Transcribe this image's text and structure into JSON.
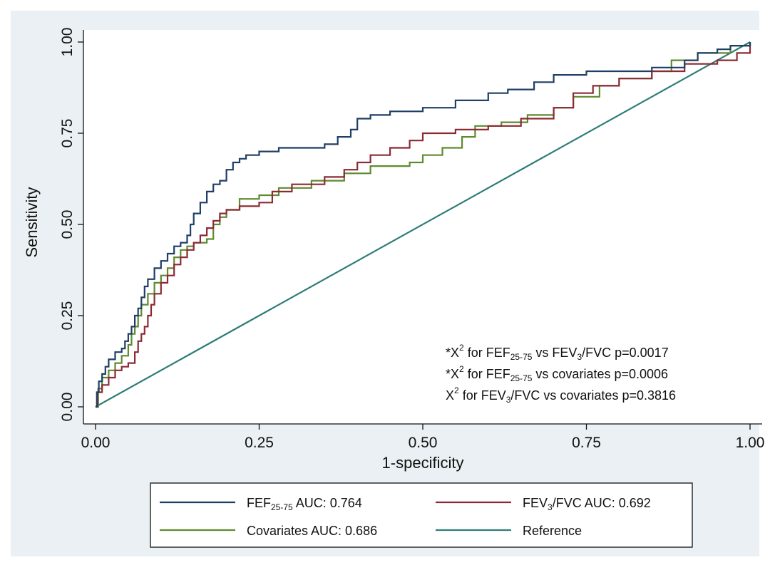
{
  "chart_data": {
    "type": "line",
    "title": "",
    "xlabel": "1-specificity",
    "ylabel": "Sensitivity",
    "xlim": [
      0,
      1
    ],
    "ylim": [
      0,
      1
    ],
    "xticks": [
      "0.00",
      "0.25",
      "0.50",
      "0.75",
      "1.00"
    ],
    "yticks": [
      "0.00",
      "0.25",
      "0.50",
      "0.75",
      "1.00"
    ],
    "grid": false,
    "legend_position": "bottom",
    "annotations": [
      {
        "prefix": "*X",
        "sup": "2",
        "text": " for FEF",
        "sub": "25-75",
        "text2": " vs FEV",
        "sub2": "3",
        "text3": "/FVC p=0.0017"
      },
      {
        "prefix": "*X",
        "sup": "2",
        "text": " for FEF",
        "sub": "25-75",
        "text2": " vs covariates p=0.0006",
        "sub2": "",
        "text3": ""
      },
      {
        "prefix": " X",
        "sup": "2",
        "text": " for FEV",
        "sub": "3",
        "text2": "/FVC vs covariates p=0.3816",
        "sub2": "",
        "text3": ""
      }
    ],
    "series": [
      {
        "legend_main": "FEF",
        "legend_sub": "25-75",
        "legend_rest": " AUC: 0.764",
        "color": "#1f3f66",
        "points": [
          [
            0,
            0
          ],
          [
            0.002,
            0.04
          ],
          [
            0.005,
            0.07
          ],
          [
            0.01,
            0.09
          ],
          [
            0.015,
            0.11
          ],
          [
            0.02,
            0.13
          ],
          [
            0.03,
            0.15
          ],
          [
            0.04,
            0.16
          ],
          [
            0.045,
            0.18
          ],
          [
            0.05,
            0.2
          ],
          [
            0.055,
            0.22
          ],
          [
            0.06,
            0.25
          ],
          [
            0.065,
            0.27
          ],
          [
            0.07,
            0.3
          ],
          [
            0.075,
            0.33
          ],
          [
            0.08,
            0.35
          ],
          [
            0.09,
            0.38
          ],
          [
            0.1,
            0.4
          ],
          [
            0.11,
            0.42
          ],
          [
            0.12,
            0.44
          ],
          [
            0.13,
            0.45
          ],
          [
            0.14,
            0.47
          ],
          [
            0.145,
            0.5
          ],
          [
            0.15,
            0.53
          ],
          [
            0.16,
            0.56
          ],
          [
            0.17,
            0.59
          ],
          [
            0.18,
            0.61
          ],
          [
            0.19,
            0.62
          ],
          [
            0.2,
            0.65
          ],
          [
            0.21,
            0.67
          ],
          [
            0.22,
            0.68
          ],
          [
            0.23,
            0.69
          ],
          [
            0.25,
            0.7
          ],
          [
            0.28,
            0.71
          ],
          [
            0.35,
            0.72
          ],
          [
            0.37,
            0.74
          ],
          [
            0.39,
            0.76
          ],
          [
            0.4,
            0.79
          ],
          [
            0.42,
            0.8
          ],
          [
            0.45,
            0.81
          ],
          [
            0.5,
            0.82
          ],
          [
            0.55,
            0.84
          ],
          [
            0.6,
            0.86
          ],
          [
            0.63,
            0.87
          ],
          [
            0.67,
            0.89
          ],
          [
            0.7,
            0.91
          ],
          [
            0.75,
            0.92
          ],
          [
            0.85,
            0.93
          ],
          [
            0.9,
            0.95
          ],
          [
            0.92,
            0.97
          ],
          [
            0.95,
            0.98
          ],
          [
            0.97,
            0.99
          ],
          [
            1,
            1
          ]
        ]
      },
      {
        "legend_main": "FEV",
        "legend_sub": "3",
        "legend_rest": "/FVC AUC: 0.692",
        "color": "#8c2a35",
        "points": [
          [
            0,
            0
          ],
          [
            0.003,
            0.04
          ],
          [
            0.01,
            0.06
          ],
          [
            0.02,
            0.08
          ],
          [
            0.03,
            0.1
          ],
          [
            0.04,
            0.11
          ],
          [
            0.05,
            0.12
          ],
          [
            0.06,
            0.15
          ],
          [
            0.065,
            0.18
          ],
          [
            0.07,
            0.2
          ],
          [
            0.075,
            0.22
          ],
          [
            0.08,
            0.25
          ],
          [
            0.085,
            0.28
          ],
          [
            0.09,
            0.31
          ],
          [
            0.1,
            0.34
          ],
          [
            0.11,
            0.36
          ],
          [
            0.12,
            0.39
          ],
          [
            0.13,
            0.41
          ],
          [
            0.14,
            0.43
          ],
          [
            0.15,
            0.45
          ],
          [
            0.16,
            0.47
          ],
          [
            0.17,
            0.49
          ],
          [
            0.18,
            0.51
          ],
          [
            0.19,
            0.53
          ],
          [
            0.2,
            0.54
          ],
          [
            0.22,
            0.55
          ],
          [
            0.25,
            0.56
          ],
          [
            0.27,
            0.59
          ],
          [
            0.3,
            0.61
          ],
          [
            0.35,
            0.63
          ],
          [
            0.38,
            0.65
          ],
          [
            0.4,
            0.67
          ],
          [
            0.42,
            0.69
          ],
          [
            0.45,
            0.71
          ],
          [
            0.48,
            0.73
          ],
          [
            0.5,
            0.75
          ],
          [
            0.55,
            0.76
          ],
          [
            0.6,
            0.77
          ],
          [
            0.65,
            0.79
          ],
          [
            0.7,
            0.82
          ],
          [
            0.73,
            0.86
          ],
          [
            0.76,
            0.88
          ],
          [
            0.8,
            0.9
          ],
          [
            0.85,
            0.92
          ],
          [
            0.9,
            0.94
          ],
          [
            0.95,
            0.95
          ],
          [
            0.98,
            0.97
          ],
          [
            1,
            1
          ]
        ]
      },
      {
        "legend_main": "Covariates AUC: 0.686",
        "legend_sub": "",
        "legend_rest": "",
        "color": "#5f8a2e",
        "points": [
          [
            0,
            0
          ],
          [
            0.004,
            0.05
          ],
          [
            0.01,
            0.08
          ],
          [
            0.02,
            0.1
          ],
          [
            0.03,
            0.12
          ],
          [
            0.04,
            0.14
          ],
          [
            0.05,
            0.17
          ],
          [
            0.055,
            0.2
          ],
          [
            0.06,
            0.22
          ],
          [
            0.065,
            0.25
          ],
          [
            0.07,
            0.28
          ],
          [
            0.08,
            0.31
          ],
          [
            0.09,
            0.34
          ],
          [
            0.1,
            0.36
          ],
          [
            0.11,
            0.38
          ],
          [
            0.12,
            0.41
          ],
          [
            0.13,
            0.43
          ],
          [
            0.14,
            0.44
          ],
          [
            0.15,
            0.45
          ],
          [
            0.17,
            0.46
          ],
          [
            0.18,
            0.5
          ],
          [
            0.19,
            0.52
          ],
          [
            0.2,
            0.54
          ],
          [
            0.22,
            0.57
          ],
          [
            0.25,
            0.58
          ],
          [
            0.28,
            0.6
          ],
          [
            0.33,
            0.62
          ],
          [
            0.38,
            0.64
          ],
          [
            0.42,
            0.66
          ],
          [
            0.48,
            0.67
          ],
          [
            0.5,
            0.69
          ],
          [
            0.53,
            0.71
          ],
          [
            0.56,
            0.74
          ],
          [
            0.58,
            0.77
          ],
          [
            0.62,
            0.78
          ],
          [
            0.66,
            0.8
          ],
          [
            0.7,
            0.82
          ],
          [
            0.73,
            0.85
          ],
          [
            0.77,
            0.88
          ],
          [
            0.8,
            0.9
          ],
          [
            0.85,
            0.92
          ],
          [
            0.88,
            0.95
          ],
          [
            0.92,
            0.97
          ],
          [
            0.97,
            0.99
          ],
          [
            1,
            1
          ]
        ]
      },
      {
        "legend_main": "Reference",
        "legend_sub": "",
        "legend_rest": "",
        "color": "#2e7d78",
        "points": [
          [
            0,
            0
          ],
          [
            1,
            1
          ]
        ]
      }
    ]
  }
}
